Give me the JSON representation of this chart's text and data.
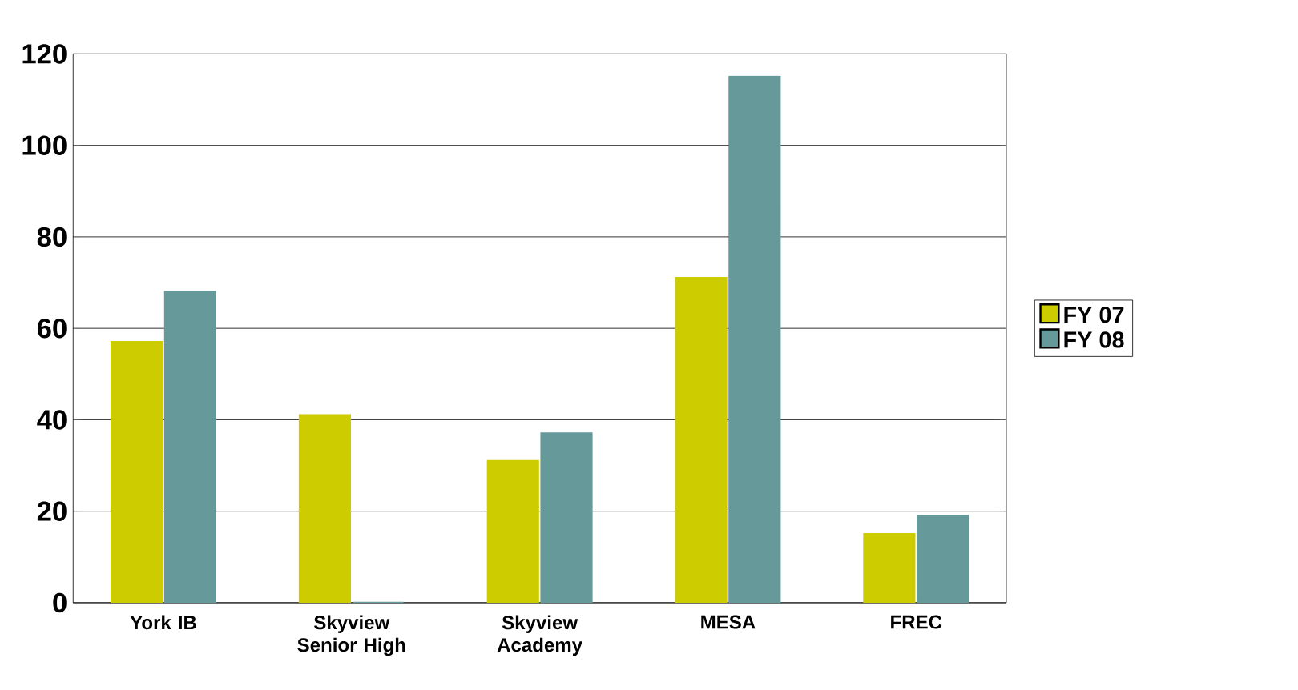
{
  "chart_data": {
    "type": "bar",
    "categories": [
      "York IB",
      "Skyview Senior High",
      "Skyview Academy",
      "MESA",
      "FREC"
    ],
    "series": [
      {
        "name": "FY 07",
        "color": "#cccc00",
        "values": [
          57,
          41,
          31,
          71,
          15
        ]
      },
      {
        "name": "FY 08",
        "color": "#669999",
        "values": [
          68,
          0,
          37,
          115,
          19
        ]
      }
    ],
    "ylim": [
      0,
      120
    ],
    "yticks": [
      0,
      20,
      40,
      60,
      80,
      100,
      120
    ],
    "grid": "y",
    "legend": "right"
  }
}
